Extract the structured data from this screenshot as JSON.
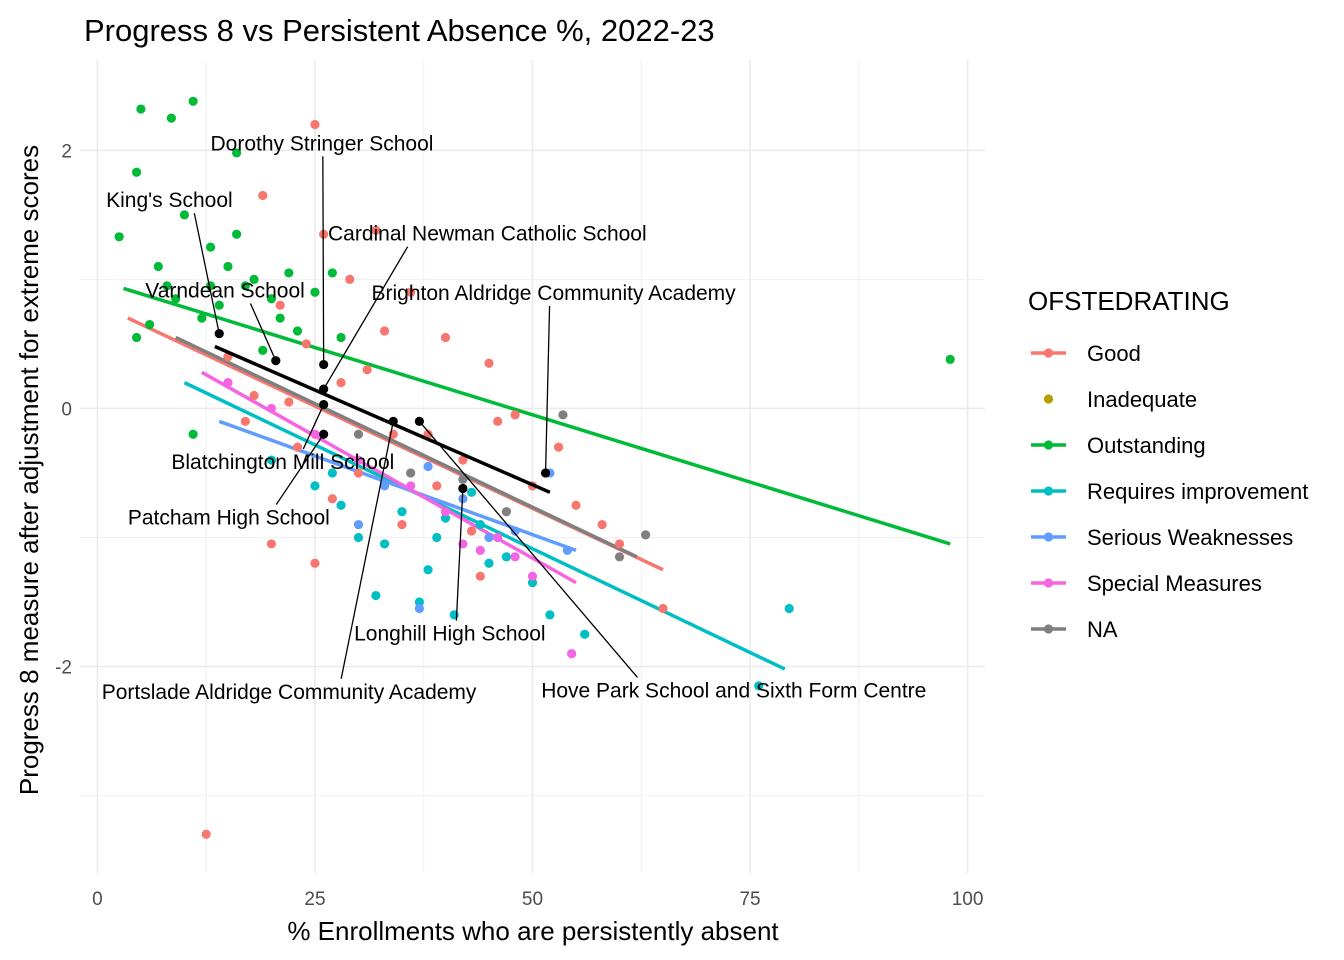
{
  "chart_data": {
    "type": "scatter",
    "title": "Progress 8 vs Persistent Absence %, 2022-23",
    "xlabel": "% Enrollments who are persistently absent",
    "ylabel": "Progress 8 measure after adjustment for extreme scores",
    "xlim": [
      -2,
      102
    ],
    "ylim": [
      -3.6,
      2.7
    ],
    "x_ticks": [
      0,
      25,
      50,
      75,
      100
    ],
    "y_ticks": [
      -2,
      0,
      2
    ],
    "grid": true,
    "legend": {
      "title": "OFSTEDRATING",
      "placement": "right",
      "entries": [
        {
          "name": "Good",
          "color": "#F8766D"
        },
        {
          "name": "Inadequate",
          "color": "#B79F00"
        },
        {
          "name": "Outstanding",
          "color": "#00BA38"
        },
        {
          "name": "Requires improvement",
          "color": "#00BFC4"
        },
        {
          "name": "Serious Weaknesses",
          "color": "#619CFF"
        },
        {
          "name": "Special Measures",
          "color": "#F564E3"
        },
        {
          "name": "NA",
          "color": "#7F7F7F"
        }
      ]
    },
    "series": [
      {
        "name": "Good",
        "color": "#F8766D",
        "trend": [
          [
            3.5,
            0.7
          ],
          [
            65,
            -1.25
          ]
        ],
        "points": [
          [
            25,
            2.2
          ],
          [
            19,
            1.65
          ],
          [
            32,
            1.38
          ],
          [
            26,
            1.35
          ],
          [
            12.5,
            -3.3
          ],
          [
            65,
            -1.55
          ],
          [
            40,
            0.55
          ],
          [
            45,
            0.35
          ],
          [
            48,
            -0.05
          ],
          [
            55,
            -0.75
          ],
          [
            60,
            -1.05
          ],
          [
            36,
            0.9
          ],
          [
            33,
            0.6
          ],
          [
            28,
            0.2
          ],
          [
            23,
            -0.3
          ],
          [
            18,
            0.1
          ],
          [
            30,
            -0.5
          ],
          [
            38,
            -0.2
          ],
          [
            42,
            -0.4
          ],
          [
            50,
            -0.6
          ],
          [
            25,
            -1.2
          ],
          [
            35,
            -0.9
          ],
          [
            44,
            -1.3
          ],
          [
            15,
            0.4
          ],
          [
            21,
            0.8
          ],
          [
            29,
            1.0
          ],
          [
            46,
            -0.1
          ],
          [
            53,
            -0.3
          ],
          [
            58,
            -0.9
          ],
          [
            20,
            -1.05
          ],
          [
            31,
            0.3
          ],
          [
            27,
            -0.7
          ],
          [
            39,
            -0.6
          ],
          [
            43,
            -0.95
          ],
          [
            34,
            -0.2
          ],
          [
            24,
            0.5
          ],
          [
            17,
            -0.1
          ],
          [
            22,
            0.05
          ]
        ]
      },
      {
        "name": "Outstanding",
        "color": "#00BA38",
        "trend": [
          [
            3,
            0.93
          ],
          [
            98,
            -1.05
          ]
        ],
        "points": [
          [
            5,
            2.32
          ],
          [
            11,
            2.38
          ],
          [
            8.5,
            2.25
          ],
          [
            16,
            1.98
          ],
          [
            4.5,
            1.83
          ],
          [
            2.5,
            1.33
          ],
          [
            98,
            0.38
          ],
          [
            10,
            1.5
          ],
          [
            13,
            1.25
          ],
          [
            15,
            1.1
          ],
          [
            18,
            1.0
          ],
          [
            20,
            0.85
          ],
          [
            22,
            1.05
          ],
          [
            25,
            0.9
          ],
          [
            27,
            1.05
          ],
          [
            8,
            0.95
          ],
          [
            12,
            0.7
          ],
          [
            6,
            0.65
          ],
          [
            4.5,
            0.55
          ],
          [
            11,
            -0.2
          ],
          [
            14,
            0.8
          ],
          [
            19,
            0.45
          ],
          [
            23,
            0.6
          ],
          [
            17,
            0.95
          ],
          [
            9,
            0.85
          ],
          [
            28,
            0.55
          ],
          [
            7,
            1.1
          ],
          [
            16,
            1.35
          ],
          [
            13,
            0.95
          ],
          [
            21,
            0.7
          ]
        ]
      },
      {
        "name": "Requires improvement",
        "color": "#00BFC4",
        "trend": [
          [
            10,
            0.2
          ],
          [
            79,
            -2.02
          ]
        ],
        "points": [
          [
            79.5,
            -1.55
          ],
          [
            76,
            -2.15
          ],
          [
            56,
            -1.75
          ],
          [
            52,
            -1.6
          ],
          [
            41,
            -1.6
          ],
          [
            37,
            -1.5
          ],
          [
            45,
            -1.2
          ],
          [
            30,
            -1.0
          ],
          [
            35,
            -0.8
          ],
          [
            40,
            -0.85
          ],
          [
            25,
            -0.6
          ],
          [
            28,
            -0.75
          ],
          [
            33,
            -1.05
          ],
          [
            47,
            -1.15
          ],
          [
            50,
            -1.35
          ],
          [
            20,
            -0.4
          ],
          [
            38,
            -1.25
          ],
          [
            43,
            -0.65
          ],
          [
            32,
            -1.45
          ],
          [
            27,
            -0.5
          ],
          [
            39,
            -1.0
          ],
          [
            44,
            -0.9
          ]
        ]
      },
      {
        "name": "Serious Weaknesses",
        "color": "#619CFF",
        "trend": [
          [
            14,
            -0.1
          ],
          [
            55,
            -1.1
          ]
        ],
        "points": [
          [
            37,
            -1.55
          ],
          [
            30,
            -0.9
          ],
          [
            38,
            -0.45
          ],
          [
            45,
            -1.0
          ],
          [
            54,
            -1.1
          ],
          [
            52,
            -0.5
          ],
          [
            42,
            -0.7
          ],
          [
            33,
            -0.6
          ],
          [
            48,
            -0.95
          ]
        ]
      },
      {
        "name": "Special Measures",
        "color": "#F564E3",
        "trend": [
          [
            12,
            0.28
          ],
          [
            55,
            -1.35
          ]
        ],
        "points": [
          [
            54.5,
            -1.9
          ],
          [
            44,
            -1.1
          ],
          [
            46,
            -1.0
          ],
          [
            50,
            -1.3
          ],
          [
            40,
            -0.8
          ],
          [
            36,
            -0.6
          ],
          [
            30,
            -0.4
          ],
          [
            25,
            -0.2
          ],
          [
            20,
            0.0
          ],
          [
            15,
            0.2
          ],
          [
            42,
            -1.05
          ],
          [
            48,
            -1.15
          ]
        ]
      },
      {
        "name": "NA",
        "color": "#7F7F7F",
        "trend": [
          [
            9,
            0.55
          ],
          [
            62,
            -1.15
          ]
        ],
        "points": [
          [
            53.5,
            -0.05
          ],
          [
            63,
            -0.98
          ],
          [
            60,
            -1.15
          ],
          [
            47,
            -0.8
          ],
          [
            42,
            -0.55
          ],
          [
            36,
            -0.5
          ],
          [
            30,
            -0.2
          ]
        ]
      },
      {
        "name": "Inadequate",
        "color": "#B79F00",
        "trend": null,
        "points": []
      }
    ],
    "highlight": {
      "color": "#000000",
      "trend": [
        [
          13.5,
          0.48
        ],
        [
          52,
          -0.65
        ]
      ],
      "schools": [
        {
          "name": "King's School",
          "x": 14,
          "y": 0.58,
          "label_x": 1,
          "label_y": 1.56
        },
        {
          "name": "Dorothy Stringer School",
          "x": 26,
          "y": 0.34,
          "label_x": 13,
          "label_y": 2.0
        },
        {
          "name": "Varndean School",
          "x": 20.5,
          "y": 0.37,
          "label_x": 5.5,
          "label_y": 0.86
        },
        {
          "name": "Cardinal Newman Catholic School",
          "x": 26,
          "y": 0.15,
          "label_x": 26.5,
          "label_y": 1.3
        },
        {
          "name": "Brighton Aldridge Community Academy",
          "x": 51.5,
          "y": -0.5,
          "label_x": 31.5,
          "label_y": 0.84
        },
        {
          "name": "Blatchington Mill School",
          "x": 26,
          "y": 0.03,
          "label_x": 8.5,
          "label_y": -0.47
        },
        {
          "name": "Patcham High School",
          "x": 26,
          "y": -0.2,
          "label_x": 3.5,
          "label_y": -0.9
        },
        {
          "name": "Longhill High School",
          "x": 42,
          "y": -0.62,
          "label_x": 29.5,
          "label_y": -1.8
        },
        {
          "name": "Portslade Aldridge Community Academy",
          "x": 34,
          "y": -0.1,
          "label_x": 0.5,
          "label_y": -2.25
        },
        {
          "name": "Hove Park School and Sixth Form Centre",
          "x": 37,
          "y": -0.1,
          "label_x": 51,
          "label_y": -2.24
        }
      ]
    }
  }
}
